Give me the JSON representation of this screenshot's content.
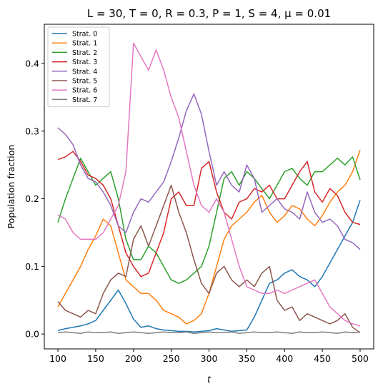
{
  "chart_data": {
    "type": "line",
    "title": "L = 30, T = 0, R = 0.3, P = 1, S = 4, μ = 0.01",
    "xlabel": "t",
    "ylabel": "Population fraction",
    "xlim": [
      82,
      518
    ],
    "ylim": [
      -0.022,
      0.458
    ],
    "xticks": [
      100,
      150,
      200,
      250,
      300,
      350,
      400,
      450,
      500
    ],
    "yticks": [
      0.0,
      0.1,
      0.2,
      0.3,
      0.4
    ],
    "ytick_labels": [
      "0.0",
      "0.1",
      "0.2",
      "0.3",
      "0.4"
    ],
    "grid": false,
    "legend_position": "upper-left",
    "x": [
      100,
      110,
      120,
      130,
      140,
      150,
      160,
      170,
      180,
      190,
      200,
      210,
      220,
      230,
      240,
      250,
      260,
      270,
      280,
      290,
      300,
      310,
      320,
      330,
      340,
      350,
      360,
      370,
      380,
      390,
      400,
      410,
      420,
      430,
      440,
      450,
      460,
      470,
      480,
      490,
      500
    ],
    "series": [
      {
        "name": "Strat. 0",
        "color": "#1f77b4",
        "values": [
          0.005,
          0.008,
          0.01,
          0.012,
          0.015,
          0.02,
          0.035,
          0.05,
          0.065,
          0.045,
          0.022,
          0.01,
          0.012,
          0.008,
          0.006,
          0.005,
          0.004,
          0.004,
          0.003,
          0.004,
          0.005,
          0.008,
          0.006,
          0.004,
          0.005,
          0.006,
          0.025,
          0.05,
          0.075,
          0.08,
          0.09,
          0.095,
          0.085,
          0.08,
          0.07,
          0.085,
          0.105,
          0.125,
          0.145,
          0.165,
          0.198
        ]
      },
      {
        "name": "Strat. 1",
        "color": "#ff7f0e",
        "values": [
          0.04,
          0.06,
          0.08,
          0.1,
          0.125,
          0.145,
          0.17,
          0.16,
          0.12,
          0.08,
          0.07,
          0.06,
          0.06,
          0.05,
          0.035,
          0.03,
          0.025,
          0.015,
          0.02,
          0.03,
          0.06,
          0.1,
          0.14,
          0.16,
          0.17,
          0.18,
          0.195,
          0.205,
          0.18,
          0.165,
          0.175,
          0.19,
          0.185,
          0.17,
          0.16,
          0.175,
          0.195,
          0.21,
          0.22,
          0.24,
          0.272
        ]
      },
      {
        "name": "Strat. 2",
        "color": "#2ca02c",
        "values": [
          0.165,
          0.2,
          0.23,
          0.26,
          0.24,
          0.22,
          0.23,
          0.24,
          0.2,
          0.14,
          0.11,
          0.11,
          0.13,
          0.12,
          0.1,
          0.08,
          0.075,
          0.08,
          0.09,
          0.1,
          0.13,
          0.18,
          0.23,
          0.24,
          0.22,
          0.24,
          0.23,
          0.215,
          0.2,
          0.22,
          0.24,
          0.245,
          0.23,
          0.22,
          0.24,
          0.24,
          0.25,
          0.26,
          0.25,
          0.262,
          0.228
        ]
      },
      {
        "name": "Strat. 3",
        "color": "#d62728",
        "values": [
          0.258,
          0.262,
          0.27,
          0.255,
          0.235,
          0.23,
          0.22,
          0.2,
          0.16,
          0.12,
          0.1,
          0.085,
          0.09,
          0.12,
          0.15,
          0.2,
          0.21,
          0.19,
          0.19,
          0.245,
          0.255,
          0.21,
          0.18,
          0.17,
          0.195,
          0.2,
          0.215,
          0.21,
          0.22,
          0.2,
          0.2,
          0.22,
          0.24,
          0.255,
          0.21,
          0.195,
          0.215,
          0.205,
          0.18,
          0.165,
          0.162
        ]
      },
      {
        "name": "Strat. 4",
        "color": "#9467bd",
        "values": [
          0.305,
          0.295,
          0.28,
          0.25,
          0.23,
          0.225,
          0.21,
          0.19,
          0.16,
          0.15,
          0.18,
          0.2,
          0.195,
          0.21,
          0.225,
          0.255,
          0.29,
          0.33,
          0.355,
          0.325,
          0.27,
          0.22,
          0.24,
          0.22,
          0.21,
          0.25,
          0.23,
          0.18,
          0.19,
          0.2,
          0.185,
          0.18,
          0.17,
          0.21,
          0.18,
          0.165,
          0.17,
          0.16,
          0.14,
          0.135,
          0.125
        ]
      },
      {
        "name": "Strat. 5",
        "color": "#8c564b",
        "values": [
          0.048,
          0.035,
          0.03,
          0.025,
          0.035,
          0.03,
          0.06,
          0.08,
          0.09,
          0.085,
          0.14,
          0.16,
          0.13,
          0.16,
          0.19,
          0.22,
          0.18,
          0.15,
          0.11,
          0.075,
          0.06,
          0.09,
          0.1,
          0.08,
          0.07,
          0.08,
          0.07,
          0.09,
          0.1,
          0.05,
          0.035,
          0.04,
          0.02,
          0.03,
          0.025,
          0.02,
          0.015,
          0.02,
          0.03,
          0.01,
          0.002
        ]
      },
      {
        "name": "Strat. 6",
        "color": "#e377c2",
        "values": [
          0.176,
          0.17,
          0.15,
          0.14,
          0.14,
          0.14,
          0.15,
          0.17,
          0.19,
          0.24,
          0.43,
          0.41,
          0.39,
          0.42,
          0.39,
          0.35,
          0.32,
          0.27,
          0.22,
          0.19,
          0.18,
          0.2,
          0.18,
          0.14,
          0.1,
          0.07,
          0.065,
          0.06,
          0.06,
          0.065,
          0.06,
          0.065,
          0.07,
          0.075,
          0.08,
          0.06,
          0.04,
          0.03,
          0.02,
          0.015,
          0.012
        ]
      },
      {
        "name": "Strat. 7",
        "color": "#7f7f7f",
        "values": [
          0.002,
          0.003,
          0.002,
          0.001,
          0.003,
          0.002,
          0.002,
          0.003,
          0.001,
          0.002,
          0.003,
          0.002,
          0.001,
          0.002,
          0.003,
          0.002,
          0.002,
          0.003,
          0.001,
          0.002,
          0.003,
          0.002,
          0.002,
          0.003,
          0.001,
          0.002,
          0.003,
          0.002,
          0.002,
          0.003,
          0.002,
          0.001,
          0.003,
          0.002,
          0.002,
          0.003,
          0.002,
          0.001,
          0.003,
          0.002,
          0.003
        ]
      }
    ]
  }
}
